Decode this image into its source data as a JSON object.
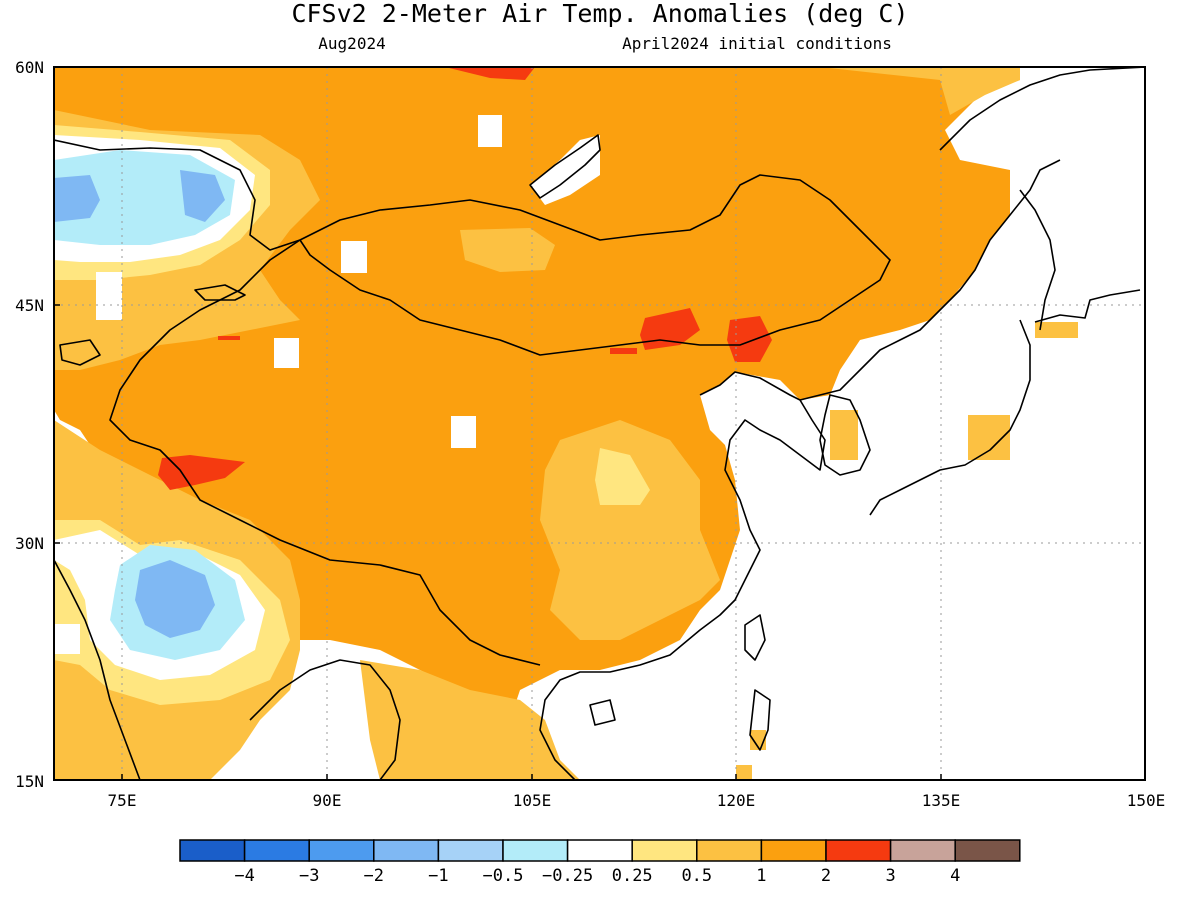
{
  "map": {
    "title": "CFSv2 2-Meter Air Temp. Anomalies (deg C)",
    "valid_month": "Aug2024",
    "initial_conditions": "April2024 initial conditions",
    "lon_labels": [
      "75E",
      "90E",
      "105E",
      "120E",
      "135E",
      "150E"
    ],
    "lat_labels": [
      "60N",
      "45N",
      "30N",
      "15N"
    ],
    "lon_range": [
      70,
      150
    ],
    "lat_range": [
      15,
      60
    ]
  },
  "colorbar": {
    "labels": [
      "-4",
      "-3",
      "-2",
      "-1",
      "-0.5",
      "-0.25",
      "0.25",
      "0.5",
      "1",
      "2",
      "3",
      "4"
    ],
    "colors": [
      "#1a5ec9",
      "#2b7be3",
      "#4d9bef",
      "#7fb8f3",
      "#a6d2f7",
      "#b3ecf9",
      "#ffffff",
      "#ffe680",
      "#fcc142",
      "#fba00f",
      "#f53a10",
      "#c8a39a",
      "#7a5548"
    ]
  },
  "chart_data": {
    "type": "heatmap",
    "title": "CFSv2 2-Meter Air Temp. Anomalies (deg C)",
    "subtitle_left": "Aug2024",
    "subtitle_right": "April2024 initial conditions",
    "x_ticks": [
      "75E",
      "90E",
      "105E",
      "120E",
      "135E",
      "150E"
    ],
    "y_ticks": [
      "60N",
      "45N",
      "30N",
      "15N"
    ],
    "xlim": [
      70,
      150
    ],
    "ylim": [
      15,
      60
    ],
    "grid": true,
    "color_levels": [
      -4,
      -3,
      -2,
      -1,
      -0.5,
      -0.25,
      0.25,
      0.5,
      1,
      2,
      3,
      4
    ]
  }
}
